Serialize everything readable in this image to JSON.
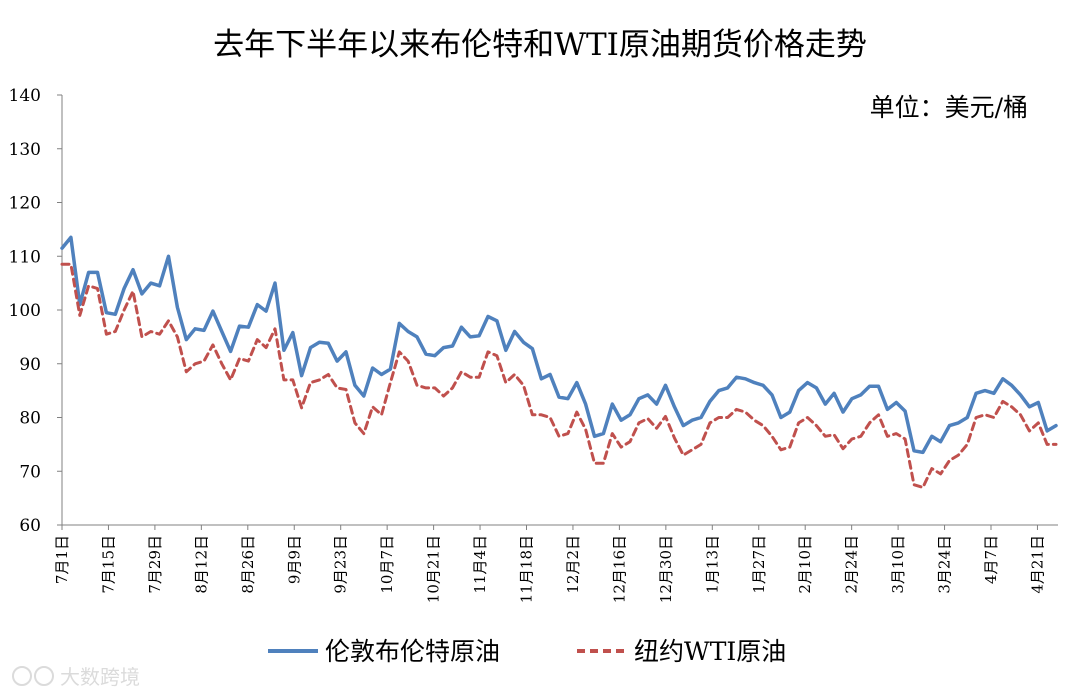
{
  "chart_data": {
    "type": "line",
    "title": "去年下半年以来布伦特和WTI原油期货价格走势",
    "unit_label": "单位：美元/桶",
    "ylim": [
      60,
      140
    ],
    "yticks": [
      "60",
      "70",
      "80",
      "90",
      "100",
      "110",
      "120",
      "130",
      "140"
    ],
    "x_tick_labels": [
      "7月1日",
      "7月15日",
      "7月29日",
      "8月12日",
      "8月26日",
      "9月9日",
      "9月23日",
      "10月7日",
      "10月21日",
      "11月4日",
      "11月18日",
      "12月2日",
      "12月16日",
      "12月30日",
      "1月13日",
      "1月27日",
      "2月10日",
      "2月24日",
      "3月10日",
      "3月24日",
      "4月7日",
      "4月21日"
    ],
    "grid": false,
    "legend_position": "bottom",
    "series": [
      {
        "name": "伦敦布伦特原油",
        "color": "#4f81bd",
        "style": "solid",
        "values": [
          111.5,
          113.5,
          101,
          107,
          107,
          99.5,
          99.2,
          104,
          107.5,
          103,
          105,
          104.5,
          110,
          100.5,
          94.5,
          96.5,
          96.2,
          99.8,
          96,
          92.3,
          97,
          96.8,
          101,
          99.8,
          105,
          92.5,
          95.8,
          87.8,
          93,
          94,
          93.8,
          90.5,
          92.2,
          86,
          84,
          89.2,
          88,
          89,
          97.5,
          96,
          95,
          91.8,
          91.5,
          93,
          93.3,
          96.8,
          95,
          95.2,
          98.8,
          98,
          92.5,
          96,
          94,
          92.8,
          87.2,
          88,
          83.8,
          83.5,
          86.5,
          82.5,
          76.5,
          77,
          82.5,
          79.5,
          80.5,
          83.5,
          84.2,
          82.5,
          86,
          82,
          78.5,
          79.5,
          80,
          83,
          85,
          85.5,
          87.5,
          87.2,
          86.5,
          86,
          84.2,
          80,
          81,
          85,
          86.5,
          85.5,
          82.5,
          84.5,
          81,
          83.5,
          84.2,
          85.8,
          85.8,
          81.5,
          82.8,
          81.2,
          73.8,
          73.5,
          76.5,
          75.5,
          78.5,
          79,
          80,
          84.5,
          85,
          84.5,
          87.2,
          86,
          84.2,
          82,
          82.8,
          77.5,
          78.5
        ]
      },
      {
        "name": "纽约WTI原油",
        "color": "#c0504d",
        "style": "dashed",
        "values": [
          108.5,
          108.5,
          99,
          104.5,
          104,
          95.5,
          96,
          100,
          103.5,
          95,
          96,
          95.5,
          98,
          95,
          88.5,
          90,
          90.5,
          93.5,
          90,
          87,
          91,
          90.5,
          94.5,
          93,
          96.5,
          87,
          87,
          81.8,
          86.5,
          87,
          88,
          85.5,
          85.2,
          79,
          77,
          82,
          80.5,
          86.5,
          92.2,
          90.5,
          86,
          85.5,
          85.5,
          84,
          85.5,
          88.5,
          87.5,
          87.5,
          92.2,
          91.5,
          86.5,
          88,
          86,
          80.5,
          80.5,
          80,
          76.5,
          77,
          81,
          77.8,
          71.5,
          71.5,
          77,
          74.5,
          75.5,
          79,
          79.8,
          78,
          80.2,
          76.2,
          73,
          74,
          75,
          79,
          80,
          80,
          81.5,
          81,
          79.5,
          78.5,
          76.5,
          74,
          74.5,
          79,
          80,
          78.5,
          76.5,
          76.8,
          74.2,
          76,
          76.5,
          79,
          80.5,
          76.5,
          77,
          76,
          67.5,
          67,
          70.5,
          69.5,
          72,
          73,
          75,
          80,
          80.5,
          80,
          83,
          82,
          80.5,
          77.5,
          79,
          75,
          75
        ]
      }
    ]
  },
  "watermark": {
    "text": "大数跨境",
    "color": "#d8d8d8"
  }
}
